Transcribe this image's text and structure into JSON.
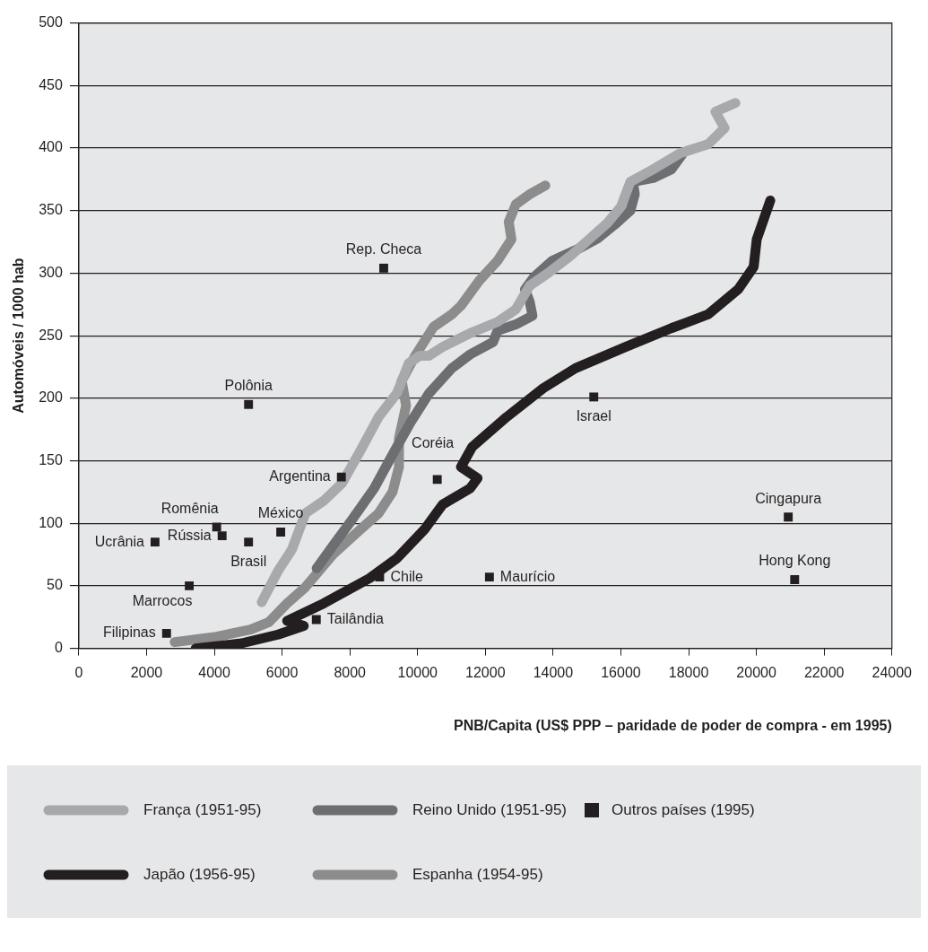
{
  "chart_data": {
    "type": "line",
    "xlabel": "PNB/Capita (US$ PPP – paridade de poder de compra - em 1995)",
    "ylabel": "Automóveis / 1000 hab",
    "xlim": [
      0,
      24000
    ],
    "xticks": [
      0,
      2000,
      4000,
      6000,
      8000,
      10000,
      12000,
      14000,
      16000,
      18000,
      20000,
      22000,
      24000
    ],
    "ylim": [
      0,
      500
    ],
    "yticks": [
      0,
      50,
      100,
      150,
      200,
      250,
      300,
      350,
      400,
      450,
      500
    ],
    "grid": "y",
    "legend": "bottom",
    "line_style": "solid",
    "series": [
      {
        "name": "França (1951-95)",
        "color": "#a7a9ac",
        "x": [
          5400,
          5880,
          6290,
          6690,
          7230,
          7770,
          8310,
          8850,
          9390,
          9740,
          10070,
          10340,
          10740,
          11550,
          12360,
          12900,
          13310,
          13850,
          14520,
          15060,
          15600,
          16000,
          16280,
          16950,
          17760,
          18570,
          19060,
          18790,
          19380
        ],
        "values": [
          37,
          62,
          79,
          108,
          118,
          132,
          158,
          185,
          204,
          228,
          234,
          234,
          241,
          252,
          261,
          271,
          290,
          300,
          314,
          327,
          340,
          353,
          373,
          383,
          396,
          403,
          416,
          429,
          436
        ]
      },
      {
        "name": "Reino Unido (1951-95)",
        "color": "#6d6e71",
        "x": [
          7020,
          7500,
          8040,
          8720,
          9260,
          9800,
          10340,
          11010,
          11550,
          12230,
          12360,
          12900,
          13390,
          13310,
          13170,
          13440,
          13980,
          14790,
          15330,
          15870,
          16280,
          16410,
          16360,
          16950,
          17490,
          17840
        ],
        "values": [
          64,
          82,
          102,
          128,
          155,
          181,
          204,
          224,
          235,
          245,
          254,
          259,
          266,
          277,
          287,
          297,
          310,
          320,
          328,
          340,
          350,
          363,
          373,
          376,
          383,
          396
        ]
      },
      {
        "name": "Outros países (1995)",
        "type": "scatter",
        "color": "#231f20",
        "marker": "square",
        "x": [
          9000,
          5010,
          7750,
          10580,
          4070,
          4230,
          2250,
          5010,
          5960,
          3260,
          2590,
          7010,
          8880,
          12120,
          15200,
          20940,
          21130
        ],
        "values": [
          304,
          195,
          137,
          135,
          97,
          90,
          85,
          85,
          93,
          50,
          12,
          23,
          57,
          57,
          201,
          105,
          55
        ]
      },
      {
        "name": "Japão (1956-95)",
        "color": "#231f20",
        "x": [
          3450,
          4800,
          5880,
          6640,
          6150,
          7230,
          8580,
          9390,
          10200,
          10740,
          11550,
          11770,
          11280,
          11610,
          12630,
          13710,
          14660,
          16140,
          17490,
          18570,
          19460,
          19920,
          20010,
          20410
        ],
        "values": [
          0,
          4,
          11,
          18,
          22,
          36,
          56,
          72,
          95,
          115,
          128,
          136,
          145,
          161,
          185,
          208,
          224,
          241,
          256,
          267,
          287,
          305,
          327,
          358
        ]
      },
      {
        "name": "Espanha (1954-95)",
        "color": "#8c8c8c",
        "x": [
          2830,
          4000,
          5070,
          5610,
          6150,
          6690,
          7500,
          8310,
          8850,
          9260,
          9450,
          9450,
          9660,
          9530,
          9930,
          10470,
          11010,
          11280,
          11820,
          12360,
          12770,
          12690,
          12900,
          13310,
          13770
        ],
        "values": [
          5,
          9,
          15,
          21,
          36,
          49,
          75,
          95,
          108,
          125,
          145,
          168,
          194,
          214,
          234,
          257,
          267,
          274,
          294,
          310,
          327,
          341,
          355,
          363,
          370
        ]
      }
    ],
    "annotations": [
      {
        "text": "Rep. Checa",
        "x": 9000,
        "y": 304
      },
      {
        "text": "Polônia",
        "x": 5010,
        "y": 195
      },
      {
        "text": "Argentina",
        "x": 7750,
        "y": 137
      },
      {
        "text": "Coréia",
        "x": 10580,
        "y": 135
      },
      {
        "text": "Romênia",
        "x": 4070,
        "y": 97
      },
      {
        "text": "Rússia",
        "x": 4230,
        "y": 90
      },
      {
        "text": "Ucrânia",
        "x": 2250,
        "y": 85
      },
      {
        "text": "Brasil",
        "x": 5010,
        "y": 85
      },
      {
        "text": "México",
        "x": 5960,
        "y": 93
      },
      {
        "text": "Marrocos",
        "x": 3260,
        "y": 50
      },
      {
        "text": "Filipinas",
        "x": 2590,
        "y": 12
      },
      {
        "text": "Tailândia",
        "x": 7010,
        "y": 23
      },
      {
        "text": "Chile",
        "x": 8880,
        "y": 57
      },
      {
        "text": "Maurício",
        "x": 12120,
        "y": 57
      },
      {
        "text": "Israel",
        "x": 15200,
        "y": 201
      },
      {
        "text": "Cingapura",
        "x": 20940,
        "y": 105
      },
      {
        "text": "Hong Kong",
        "x": 21130,
        "y": 55
      }
    ]
  }
}
